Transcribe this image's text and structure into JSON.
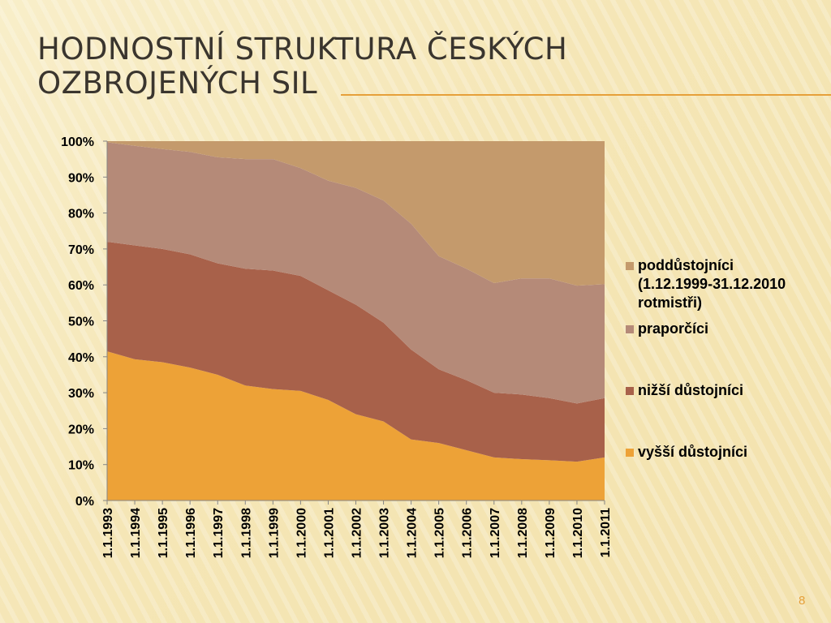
{
  "slide": {
    "title_line1": "HODNOSTNÍ STRUKTURA ČESKÝCH",
    "title_line2": "OZBROJENÝCH SIL",
    "page_number": "8"
  },
  "colors": {
    "accent": "#e6a03a",
    "plot_bg": "#ffffff",
    "series": [
      "#eda237",
      "#a8614a",
      "#b58a78",
      "#c49a6c"
    ]
  },
  "chart_data": {
    "type": "area",
    "stacked": "percent",
    "title": "",
    "xlabel": "",
    "ylabel": "",
    "ylim": [
      0,
      100
    ],
    "y_ticks": [
      "0%",
      "10%",
      "20%",
      "30%",
      "40%",
      "50%",
      "60%",
      "70%",
      "80%",
      "90%",
      "100%"
    ],
    "x": [
      "1.1.1993",
      "1.1.1994",
      "1.1.1995",
      "1.1.1996",
      "1.1.1997",
      "1.1.1998",
      "1.1.1999",
      "1.1.2000",
      "1.1.2001",
      "1.1.2002",
      "1.1.2003",
      "1.1.2004",
      "1.1.2005",
      "1.1.2006",
      "1.1.2007",
      "1.1.2008",
      "1.1.2009",
      "1.1.2010",
      "1.1.2011"
    ],
    "series": [
      {
        "name": "vyšší důstojníci",
        "values": [
          41.5,
          39.3,
          38.5,
          37,
          35,
          32,
          31,
          30.5,
          28,
          24,
          22,
          17,
          16,
          14,
          12,
          11.5,
          11.2,
          10.8,
          12
        ]
      },
      {
        "name": "nižší důstojníci",
        "values": [
          30.5,
          31.7,
          31.5,
          31.5,
          31,
          32.5,
          33,
          32,
          30.5,
          30.5,
          27.5,
          25,
          20.5,
          19.5,
          18,
          18,
          17.3,
          16.2,
          16.5
        ]
      },
      {
        "name": "praporčíci",
        "values": [
          27.7,
          27.7,
          27.8,
          28.5,
          29.5,
          30.5,
          31,
          30,
          30.5,
          32.5,
          34,
          35,
          31.5,
          31,
          30.5,
          32.3,
          33.3,
          32.8,
          31.7
        ]
      },
      {
        "name": "poddůstojníci (1.12.1999-31.12.2010 rotmistři)",
        "values": [
          0.3,
          1.3,
          2.2,
          3,
          4.5,
          5,
          5,
          7.5,
          11,
          13,
          16.5,
          23,
          32,
          35.5,
          39.5,
          38.2,
          38.2,
          40.2,
          39.8
        ]
      }
    ],
    "legend": {
      "position": "right",
      "order": [
        3,
        2,
        1,
        0
      ],
      "lines": [
        [
          "poddůstojníci",
          "(1.12.1999-31.12.2010",
          "rotmistři)"
        ],
        [
          "praporčíci"
        ],
        [
          "nižší důstojníci"
        ],
        [
          "vyšší důstojníci"
        ]
      ]
    }
  }
}
